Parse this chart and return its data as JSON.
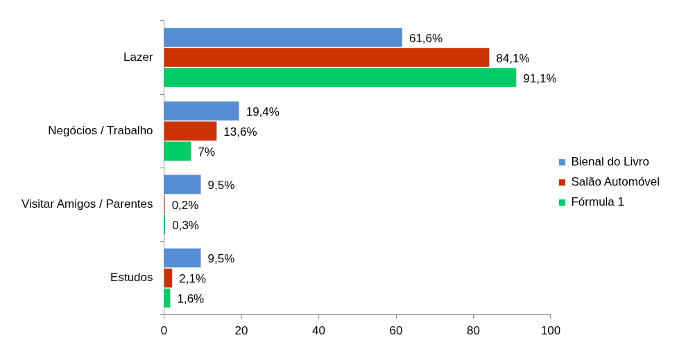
{
  "chart_data": {
    "type": "bar",
    "orientation": "horizontal",
    "categories": [
      "Lazer",
      "Negócios / Trabalho",
      "Visitar Amigos / Parentes",
      "Estudos"
    ],
    "series": [
      {
        "name": "Bienal do Livro",
        "color": "#558ed5",
        "values": [
          61.6,
          19.4,
          9.5,
          9.5
        ],
        "value_labels": [
          "61,6%",
          "19,4%",
          "9,5%",
          "9,5%"
        ]
      },
      {
        "name": "Salão Automóvel",
        "color": "#cc3300",
        "values": [
          84.1,
          13.6,
          0.2,
          2.1
        ],
        "value_labels": [
          "84,1%",
          "13,6%",
          "0,2%",
          "2,1%"
        ]
      },
      {
        "name": "Fórmula 1",
        "color": "#00cc66",
        "values": [
          91.1,
          7,
          0.3,
          1.6
        ],
        "value_labels": [
          "91,1%",
          "7%",
          "0,3%",
          "1,6%"
        ]
      }
    ],
    "xlim": [
      0,
      100
    ],
    "xticks": [
      0,
      20,
      40,
      60,
      80,
      100
    ],
    "grid": false,
    "legend": "right"
  }
}
